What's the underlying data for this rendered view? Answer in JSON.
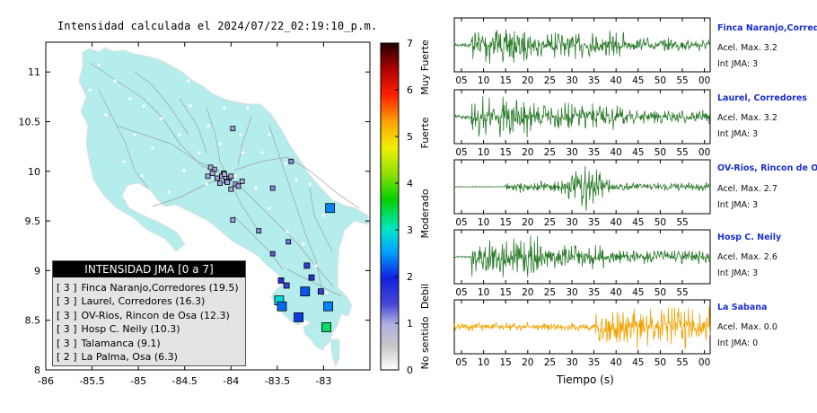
{
  "title": "Intensidad calculada el 2024/07/22_02:19:10_p.m.",
  "chart_data": [
    {
      "type": "scatter",
      "title": "Intensidad calculada el 2024/07/22_02:19:10_p.m.",
      "x_ticks": [
        "-86",
        "-85.5",
        "-85",
        "-84.5",
        "-84",
        "-83.5",
        "-83"
      ],
      "y_ticks": [
        "8",
        "8.5",
        "9",
        "9.5",
        "10",
        "10.5",
        "11"
      ],
      "xlim": [
        -86,
        -82.5
      ],
      "ylim": [
        8,
        11.3
      ],
      "colorbar": {
        "ticks": [
          "0",
          "1",
          "2",
          "3",
          "4",
          "5",
          "6",
          "7"
        ],
        "labels": [
          "No sentido",
          "Debil",
          "Moderado",
          "Fuerte",
          "Muy Fuerte"
        ],
        "range": [
          0,
          7
        ]
      },
      "stations": [
        {
          "lon": -82.93,
          "lat": 9.63,
          "intensity": 2.4
        },
        {
          "lon": -83.48,
          "lat": 8.7,
          "intensity": 2.9
        },
        {
          "lon": -83.45,
          "lat": 8.64,
          "intensity": 2.3
        },
        {
          "lon": -83.2,
          "lat": 8.79,
          "intensity": 2.2
        },
        {
          "lon": -83.27,
          "lat": 8.53,
          "intensity": 2.1
        },
        {
          "lon": -82.95,
          "lat": 8.64,
          "intensity": 2.4
        },
        {
          "lon": -82.97,
          "lat": 8.43,
          "intensity": 3.3
        },
        {
          "lon": -83.46,
          "lat": 8.9,
          "intensity": 1.8
        },
        {
          "lon": -83.13,
          "lat": 8.93,
          "intensity": 1.7
        },
        {
          "lon": -83.03,
          "lat": 8.79,
          "intensity": 1.6
        },
        {
          "lon": -83.18,
          "lat": 9.05,
          "intensity": 1.6
        },
        {
          "lon": -83.4,
          "lat": 8.85,
          "intensity": 1.5
        },
        {
          "lon": -83.55,
          "lat": 9.17,
          "intensity": 1.3
        },
        {
          "lon": -83.38,
          "lat": 9.29,
          "intensity": 1.2
        },
        {
          "lon": -83.7,
          "lat": 9.4,
          "intensity": 1.1
        },
        {
          "lon": -83.98,
          "lat": 9.51,
          "intensity": 1.0
        },
        {
          "lon": -83.55,
          "lat": 9.83,
          "intensity": 1.1
        },
        {
          "lon": -83.35,
          "lat": 10.1,
          "intensity": 1.1
        },
        {
          "lon": -83.98,
          "lat": 10.43,
          "intensity": 1.0
        },
        {
          "lon": -84.02,
          "lat": 9.93,
          "intensity": 1.2
        },
        {
          "lon": -84.08,
          "lat": 9.98,
          "intensity": 1.1
        },
        {
          "lon": -84.15,
          "lat": 9.93,
          "intensity": 1.0
        },
        {
          "lon": -84.12,
          "lat": 9.88,
          "intensity": 1.0
        },
        {
          "lon": -84.05,
          "lat": 9.9,
          "intensity": 0.9
        },
        {
          "lon": -83.95,
          "lat": 9.87,
          "intensity": 1.0
        },
        {
          "lon": -83.92,
          "lat": 9.85,
          "intensity": 1.0
        },
        {
          "lon": -84.18,
          "lat": 10.02,
          "intensity": 0.9
        },
        {
          "lon": -84.22,
          "lat": 10.04,
          "intensity": 0.9
        },
        {
          "lon": -84.2,
          "lat": 9.98,
          "intensity": 0.9
        },
        {
          "lon": -84.1,
          "lat": 9.95,
          "intensity": 1.0
        },
        {
          "lon": -84.0,
          "lat": 9.95,
          "intensity": 0.9
        },
        {
          "lon": -84.07,
          "lat": 9.97,
          "intensity": 0.8
        },
        {
          "lon": -84.04,
          "lat": 9.89,
          "intensity": 1.0
        },
        {
          "lon": -84.25,
          "lat": 9.95,
          "intensity": 0.9
        },
        {
          "lon": -83.88,
          "lat": 9.9,
          "intensity": 0.9
        },
        {
          "lon": -84.0,
          "lat": 9.82,
          "intensity": 0.9
        }
      ]
    },
    {
      "type": "line",
      "xlabel": "Tiempo (s)",
      "x_ticks": [
        "05",
        "10",
        "15",
        "20",
        "25",
        "30",
        "35",
        "40",
        "45",
        "50",
        "55",
        "00"
      ],
      "series": [
        {
          "name": "Finca Naranjo,Corredores",
          "acc": "Acel. Max. 3.2",
          "jma": "Int JMA: 3"
        },
        {
          "name": "Laurel, Corredores",
          "acc": "Acel. Max. 3.2",
          "jma": "Int JMA: 3"
        },
        {
          "name": "OV-Rios, Rincon de Osa",
          "acc": "Acel. Max. 2.7",
          "jma": "Int JMA: 3"
        },
        {
          "name": "Hosp C. Neily",
          "acc": "Acel. Max. 2.6",
          "jma": "Int JMA: 3"
        },
        {
          "name": "La Sabana",
          "acc": "Acel. Max. 0.0",
          "jma": "Int JMA: 0"
        }
      ]
    }
  ],
  "legend": {
    "header": "INTENSIDAD JMA [0 a 7]",
    "items": [
      "Finca Naranjo,Corredores (19.5)",
      "Laurel, Corredores (16.3)",
      "OV-Rios, Rincon de Osa (12.3)",
      "Hosp C. Neily (10.3)",
      "Talamanca (9.1)",
      "La Palma, Osa (6.3)"
    ],
    "levels": [
      "[ 3 ]",
      "[ 3 ]",
      "[ 3 ]",
      "[ 3 ]",
      "[ 3 ]",
      "[ 2 ]"
    ]
  },
  "colors": {
    "land": "#b5ecec",
    "trace_green": "#2a7a2a",
    "trace_orange": "#f2a200",
    "station_name": "#1a2fd0"
  },
  "waveform_axis_ticks": [
    [
      "05",
      "10",
      "15",
      "20",
      "25",
      "30",
      "35",
      "40",
      "45",
      "50",
      "55",
      "00"
    ],
    [
      "05",
      "10",
      "15",
      "20",
      "25",
      "30",
      "35",
      "40",
      "45",
      "50",
      "55",
      "00"
    ],
    [
      "05",
      "10",
      "15",
      "20",
      "25",
      "30",
      "35",
      "40",
      "45",
      "50",
      "55"
    ],
    [
      "05",
      "10",
      "15",
      "20",
      "25",
      "30",
      "35",
      "40",
      "45",
      "50",
      "55"
    ],
    [
      "05",
      "10",
      "15",
      "20",
      "25",
      "30",
      "35",
      "40",
      "45",
      "50",
      "55",
      "00"
    ]
  ]
}
